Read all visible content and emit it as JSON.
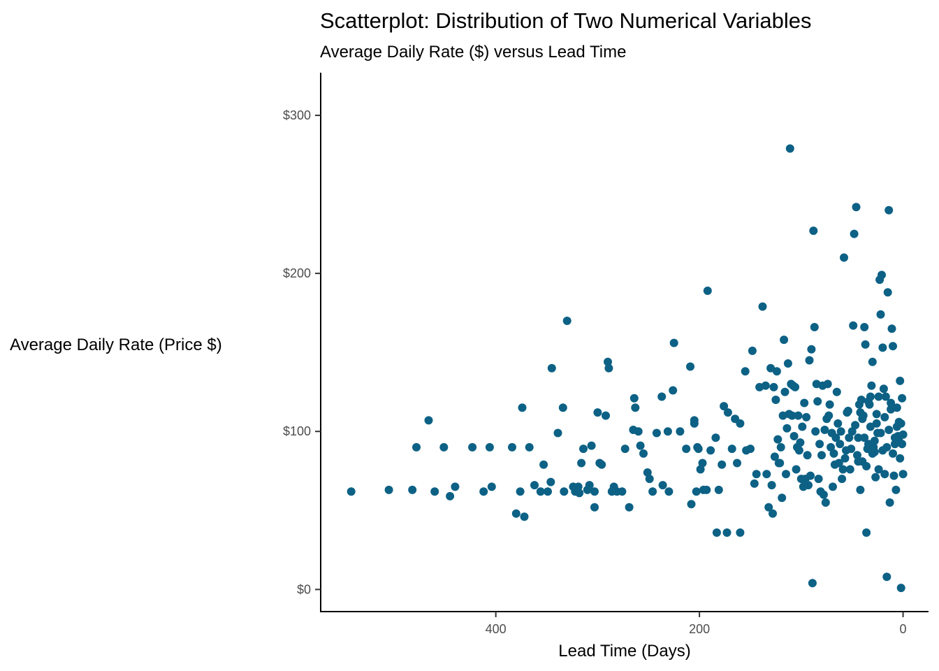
{
  "chart_data": {
    "type": "scatter",
    "title": "Scatterplot: Distribution of Two Numerical Variables",
    "subtitle": "Average Daily Rate ($) versus Lead Time",
    "xlabel": "Lead Time (Days)",
    "ylabel": "Average Daily Rate (Price $)",
    "x_reversed": true,
    "xlim": [
      572,
      -25
    ],
    "ylim": [
      -14,
      327
    ],
    "x_ticks": [
      400,
      200,
      0
    ],
    "x_tick_labels": [
      "400",
      "200",
      "0"
    ],
    "y_ticks": [
      0,
      100,
      200,
      300
    ],
    "y_tick_labels": [
      "$0",
      "$100",
      "$200",
      "$300"
    ],
    "grid": false,
    "legend": "none",
    "point_color": "#0d6185",
    "points": [
      [
        542,
        62
      ],
      [
        505,
        63
      ],
      [
        482,
        63
      ],
      [
        478,
        90
      ],
      [
        466,
        107
      ],
      [
        460,
        62
      ],
      [
        451,
        90
      ],
      [
        445,
        59
      ],
      [
        440,
        65
      ],
      [
        423,
        90
      ],
      [
        412,
        62
      ],
      [
        406,
        90
      ],
      [
        404,
        65
      ],
      [
        384,
        90
      ],
      [
        380,
        48
      ],
      [
        376,
        62
      ],
      [
        374,
        115
      ],
      [
        372,
        46
      ],
      [
        367,
        90
      ],
      [
        362,
        66
      ],
      [
        356,
        62
      ],
      [
        353,
        79
      ],
      [
        349,
        62
      ],
      [
        346,
        68
      ],
      [
        345,
        140
      ],
      [
        339,
        99
      ],
      [
        334,
        115
      ],
      [
        333,
        62
      ],
      [
        330,
        170
      ],
      [
        324,
        65
      ],
      [
        322,
        62
      ],
      [
        319,
        65
      ],
      [
        318,
        61
      ],
      [
        316,
        80
      ],
      [
        314,
        89
      ],
      [
        310,
        63
      ],
      [
        308,
        66
      ],
      [
        306,
        91
      ],
      [
        303,
        62
      ],
      [
        303,
        52
      ],
      [
        300,
        112
      ],
      [
        298,
        80
      ],
      [
        296,
        79
      ],
      [
        292,
        110
      ],
      [
        290,
        144
      ],
      [
        289,
        140
      ],
      [
        286,
        62
      ],
      [
        284,
        65
      ],
      [
        281,
        62
      ],
      [
        276,
        62
      ],
      [
        273,
        89
      ],
      [
        269,
        52
      ],
      [
        265,
        101
      ],
      [
        264,
        121
      ],
      [
        263,
        115
      ],
      [
        260,
        100
      ],
      [
        258,
        91
      ],
      [
        255,
        86
      ],
      [
        251,
        74
      ],
      [
        249,
        70
      ],
      [
        246,
        62
      ],
      [
        242,
        99
      ],
      [
        237,
        122
      ],
      [
        236,
        66
      ],
      [
        231,
        100
      ],
      [
        230,
        62
      ],
      [
        226,
        126
      ],
      [
        225,
        156
      ],
      [
        219,
        100
      ],
      [
        213,
        89
      ],
      [
        209,
        141
      ],
      [
        208,
        54
      ],
      [
        205,
        105
      ],
      [
        205,
        107
      ],
      [
        203,
        62
      ],
      [
        202,
        90
      ],
      [
        201,
        89
      ],
      [
        199,
        76
      ],
      [
        197,
        80
      ],
      [
        196,
        63
      ],
      [
        193,
        63
      ],
      [
        192,
        189
      ],
      [
        189,
        88
      ],
      [
        184,
        96
      ],
      [
        183,
        36
      ],
      [
        181,
        63
      ],
      [
        178,
        79
      ],
      [
        176,
        116
      ],
      [
        173,
        36
      ],
      [
        172,
        112
      ],
      [
        168,
        89
      ],
      [
        165,
        108
      ],
      [
        163,
        80
      ],
      [
        160,
        36
      ],
      [
        160,
        105
      ],
      [
        155,
        138
      ],
      [
        154,
        88
      ],
      [
        150,
        89
      ],
      [
        148,
        151
      ],
      [
        146,
        67
      ],
      [
        144,
        73
      ],
      [
        141,
        128
      ],
      [
        138,
        179
      ],
      [
        135,
        129
      ],
      [
        134,
        73
      ],
      [
        132,
        52
      ],
      [
        130,
        140
      ],
      [
        129,
        66
      ],
      [
        128,
        48
      ],
      [
        127,
        128
      ],
      [
        125,
        120
      ],
      [
        121,
        80
      ],
      [
        120,
        90
      ],
      [
        118,
        110
      ],
      [
        117,
        158
      ],
      [
        115,
        73
      ],
      [
        113,
        143
      ],
      [
        111,
        279
      ],
      [
        110,
        130
      ],
      [
        109,
        110
      ],
      [
        108,
        129
      ],
      [
        106,
        128
      ],
      [
        104,
        90
      ],
      [
        103,
        110
      ],
      [
        100,
        70
      ],
      [
        98,
        65
      ],
      [
        96,
        70
      ],
      [
        95,
        109
      ],
      [
        92,
        145
      ],
      [
        90,
        152
      ],
      [
        89,
        4
      ],
      [
        88,
        227
      ],
      [
        87,
        166
      ],
      [
        85,
        130
      ],
      [
        83,
        70
      ],
      [
        81,
        62
      ],
      [
        80,
        85
      ],
      [
        79,
        129
      ],
      [
        78,
        60
      ],
      [
        76,
        55
      ],
      [
        75,
        108
      ],
      [
        74,
        130
      ],
      [
        73,
        110
      ],
      [
        71,
        90
      ],
      [
        69,
        65
      ],
      [
        67,
        79
      ],
      [
        65,
        125
      ],
      [
        63,
        80
      ],
      [
        61,
        100
      ],
      [
        59,
        76
      ],
      [
        58,
        210
      ],
      [
        57,
        83
      ],
      [
        55,
        112
      ],
      [
        54,
        113
      ],
      [
        52,
        76
      ],
      [
        51,
        89
      ],
      [
        49,
        167
      ],
      [
        48,
        225
      ],
      [
        46,
        242
      ],
      [
        45,
        85
      ],
      [
        44,
        81
      ],
      [
        43,
        117
      ],
      [
        42,
        63
      ],
      [
        41,
        120
      ],
      [
        40,
        108
      ],
      [
        39,
        110
      ],
      [
        38,
        166
      ],
      [
        37,
        155
      ],
      [
        36,
        36
      ],
      [
        35,
        89
      ],
      [
        34,
        119
      ],
      [
        33,
        117
      ],
      [
        32,
        122
      ],
      [
        31,
        129
      ],
      [
        30,
        144
      ],
      [
        29,
        90
      ],
      [
        28,
        87
      ],
      [
        27,
        71
      ],
      [
        26,
        105
      ],
      [
        25,
        99
      ],
      [
        24,
        122
      ],
      [
        23,
        196
      ],
      [
        22,
        174
      ],
      [
        21,
        199
      ],
      [
        20,
        153
      ],
      [
        19,
        127
      ],
      [
        18,
        73
      ],
      [
        17,
        122
      ],
      [
        16,
        8
      ],
      [
        15,
        188
      ],
      [
        14,
        240
      ],
      [
        13,
        55
      ],
      [
        12,
        118
      ],
      [
        11,
        165
      ],
      [
        10,
        154
      ],
      [
        9,
        72
      ],
      [
        8,
        92
      ],
      [
        7,
        63
      ],
      [
        6,
        115
      ],
      [
        5,
        97
      ],
      [
        4,
        106
      ],
      [
        3,
        132
      ],
      [
        2,
        1
      ],
      [
        1,
        121
      ],
      [
        0,
        73
      ],
      [
        126,
        84
      ],
      [
        124,
        138
      ],
      [
        123,
        95
      ],
      [
        122,
        80
      ],
      [
        119,
        58
      ],
      [
        116,
        125
      ],
      [
        114,
        102
      ],
      [
        112,
        111
      ],
      [
        107,
        97
      ],
      [
        105,
        76
      ],
      [
        102,
        88
      ],
      [
        101,
        93
      ],
      [
        99,
        103
      ],
      [
        97,
        118
      ],
      [
        94,
        85
      ],
      [
        93,
        66
      ],
      [
        91,
        72
      ],
      [
        86,
        100
      ],
      [
        84,
        119
      ],
      [
        82,
        92
      ],
      [
        77,
        101
      ],
      [
        72,
        117
      ],
      [
        70,
        99
      ],
      [
        68,
        86
      ],
      [
        66,
        96
      ],
      [
        64,
        105
      ],
      [
        62,
        92
      ],
      [
        60,
        70
      ],
      [
        56,
        88
      ],
      [
        53,
        96
      ],
      [
        50,
        100
      ],
      [
        47,
        104
      ],
      [
        44,
        96
      ],
      [
        42,
        112
      ],
      [
        40,
        81
      ],
      [
        38,
        96
      ],
      [
        36,
        78
      ],
      [
        34,
        92
      ],
      [
        32,
        103
      ],
      [
        30,
        86
      ],
      [
        28,
        94
      ],
      [
        26,
        111
      ],
      [
        24,
        76
      ],
      [
        22,
        99
      ],
      [
        20,
        88
      ],
      [
        18,
        109
      ],
      [
        16,
        90
      ],
      [
        14,
        101
      ],
      [
        12,
        114
      ],
      [
        10,
        86
      ],
      [
        8,
        96
      ],
      [
        6,
        103
      ],
      [
        4,
        94
      ],
      [
        3,
        83
      ],
      [
        2,
        105
      ],
      [
        1,
        92
      ],
      [
        0,
        98
      ]
    ]
  }
}
